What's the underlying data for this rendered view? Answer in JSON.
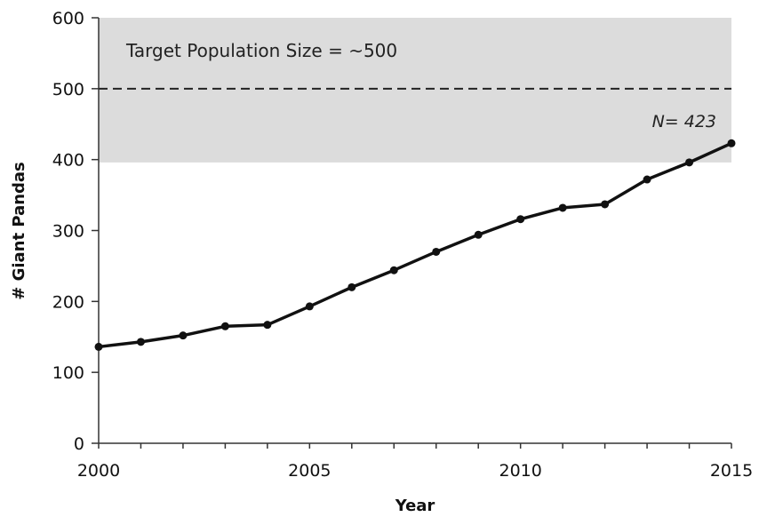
{
  "chart_data": {
    "type": "line",
    "title": "",
    "xlabel": "Year",
    "ylabel": "# Giant Pandas",
    "xlim": [
      2000,
      2015
    ],
    "ylim": [
      0,
      600
    ],
    "x_ticks": [
      "2000",
      "2005",
      "2010",
      "2015"
    ],
    "x_tick_values": [
      2000,
      2005,
      2010,
      2015
    ],
    "y_ticks": [
      "0",
      "100",
      "200",
      "300",
      "400",
      "500",
      "600"
    ],
    "y_tick_values": [
      0,
      100,
      200,
      300,
      400,
      500,
      600
    ],
    "grid": false,
    "legend": "none",
    "series": [
      {
        "x": [
          2000,
          2001,
          2002,
          2003,
          2004,
          2005,
          2006,
          2007,
          2008,
          2009,
          2010,
          2011,
          2012,
          2013,
          2014,
          2015
        ],
        "values": [
          136,
          143,
          152,
          165,
          167,
          193,
          220,
          244,
          270,
          294,
          316,
          332,
          337,
          372,
          396,
          423
        ],
        "color": "#111111"
      }
    ],
    "target_band": {
      "y_range": [
        396,
        600
      ],
      "color": "#dcdcdc"
    },
    "target_line": {
      "y": 500,
      "style": "dashed",
      "label": "Target Population Size = ~500"
    },
    "annotation": {
      "text": "N= 423",
      "style": "italic"
    }
  }
}
